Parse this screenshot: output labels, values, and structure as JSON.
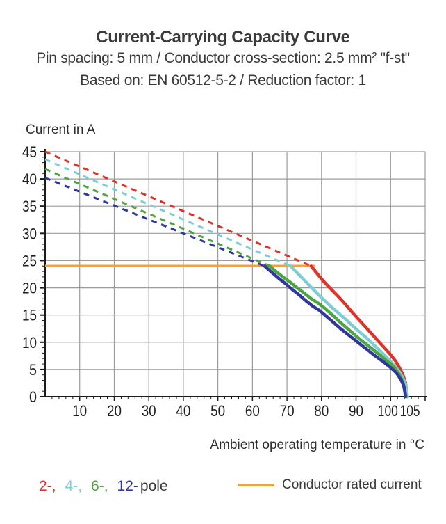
{
  "header": {
    "title": "Current-Carrying Capacity Curve",
    "subtitle1": "Pin spacing: 5 mm / Conductor cross-section: 2.5 mm² \"f-st\"",
    "subtitle2": "Based on: EN 60512-5-2 / Reduction factor: 1"
  },
  "chart_data": {
    "type": "line",
    "title": "Current-Carrying Capacity Curve",
    "ylabel": "Current in A",
    "xlabel": "Ambient operating temperature in °C",
    "xlim": [
      0,
      110
    ],
    "ylim": [
      0,
      45
    ],
    "x_grid_step": 10,
    "y_grid_step": 5,
    "x_minor_step": 2,
    "y_minor_step": 1,
    "grid_on": true,
    "grid_color": "#9c9c9c",
    "axis_color": "#1b1b1b",
    "tick_label_color": "#1f1f1f",
    "x_tick_labels": [
      {
        "v": 10,
        "label": "10"
      },
      {
        "v": 20,
        "label": "20"
      },
      {
        "v": 30,
        "label": "30"
      },
      {
        "v": 40,
        "label": "40"
      },
      {
        "v": 50,
        "label": "50"
      },
      {
        "v": 60,
        "label": "60"
      },
      {
        "v": 70,
        "label": "70"
      },
      {
        "v": 80,
        "label": "80"
      },
      {
        "v": 90,
        "label": "90"
      },
      {
        "v": 100,
        "label": "100"
      },
      {
        "v": 105,
        "label": "105"
      }
    ],
    "y_tick_labels": [
      {
        "v": 0,
        "label": "0"
      },
      {
        "v": 5,
        "label": "5"
      },
      {
        "v": 10,
        "label": "10"
      },
      {
        "v": 15,
        "label": "15"
      },
      {
        "v": 20,
        "label": "20"
      },
      {
        "v": 25,
        "label": "25"
      },
      {
        "v": 30,
        "label": "30"
      },
      {
        "v": 35,
        "label": "35"
      },
      {
        "v": 40,
        "label": "40"
      },
      {
        "v": 45,
        "label": "45"
      }
    ],
    "rated_current_line": {
      "value": 24,
      "x_from": 0,
      "x_to": 78,
      "color": "#f2a13c",
      "label": "Conductor rated current"
    },
    "series": [
      {
        "name": "2-pole",
        "color": "#e23127",
        "dashed": [
          [
            0,
            45
          ],
          [
            77,
            24
          ]
        ],
        "solid": [
          [
            77,
            24
          ],
          [
            79,
            22.4
          ],
          [
            81,
            20.9
          ],
          [
            83,
            19.6
          ],
          [
            85,
            18.3
          ],
          [
            87,
            16.9
          ],
          [
            89,
            15.4
          ],
          [
            91,
            14
          ],
          [
            93,
            12.6
          ],
          [
            95,
            11.2
          ],
          [
            97,
            9.8
          ],
          [
            99,
            8.4
          ],
          [
            100,
            7.7
          ],
          [
            101.5,
            6.5
          ],
          [
            102.5,
            5.4
          ],
          [
            103.5,
            4.1
          ],
          [
            104.3,
            2.6
          ],
          [
            104.85,
            0
          ]
        ]
      },
      {
        "name": "4-pole",
        "color": "#7dcdd6",
        "dashed": [
          [
            0,
            43.6
          ],
          [
            71,
            24
          ]
        ],
        "solid": [
          [
            71,
            24
          ],
          [
            73,
            22.7
          ],
          [
            75,
            21.4
          ],
          [
            77,
            20.1
          ],
          [
            79,
            18.8
          ],
          [
            81,
            17.6
          ],
          [
            83,
            16.4
          ],
          [
            85,
            15.3
          ],
          [
            87,
            14.2
          ],
          [
            89,
            13
          ],
          [
            91,
            11.9
          ],
          [
            93,
            10.8
          ],
          [
            95,
            9.6
          ],
          [
            97,
            8.4
          ],
          [
            99,
            7.1
          ],
          [
            100,
            6.5
          ],
          [
            101.5,
            5.4
          ],
          [
            102.5,
            4.6
          ],
          [
            103.5,
            3.5
          ],
          [
            104.3,
            2.3
          ],
          [
            104.9,
            0
          ]
        ]
      },
      {
        "name": "6-pole",
        "color": "#4da63f",
        "dashed": [
          [
            0,
            41.8
          ],
          [
            65,
            24
          ]
        ],
        "solid": [
          [
            65,
            24
          ],
          [
            67,
            22.9
          ],
          [
            69,
            21.9
          ],
          [
            71,
            21
          ],
          [
            73,
            20
          ],
          [
            75,
            19
          ],
          [
            77,
            18
          ],
          [
            79,
            17.2
          ],
          [
            81,
            16.2
          ],
          [
            83,
            15.1
          ],
          [
            85,
            13.9
          ],
          [
            87,
            12.8
          ],
          [
            89,
            11.7
          ],
          [
            91,
            10.6
          ],
          [
            93,
            9.6
          ],
          [
            95,
            8.6
          ],
          [
            97,
            7.6
          ],
          [
            99,
            6.5
          ],
          [
            100,
            6.1
          ],
          [
            101.5,
            5
          ],
          [
            102.5,
            4.1
          ],
          [
            103.5,
            2.9
          ],
          [
            104.5,
            0
          ]
        ]
      },
      {
        "name": "12-pole",
        "color": "#3137a1",
        "dashed": [
          [
            0,
            40.2
          ],
          [
            63.5,
            24
          ]
        ],
        "solid": [
          [
            63.5,
            24
          ],
          [
            65.5,
            22.9
          ],
          [
            67.5,
            21.8
          ],
          [
            69.5,
            20.8
          ],
          [
            71.5,
            19.7
          ],
          [
            73.5,
            18.7
          ],
          [
            75.5,
            17.6
          ],
          [
            77.5,
            16.6
          ],
          [
            79.5,
            15.8
          ],
          [
            81.5,
            14.7
          ],
          [
            83.5,
            13.6
          ],
          [
            85.5,
            12.5
          ],
          [
            87.5,
            11.5
          ],
          [
            89.5,
            10.5
          ],
          [
            91.5,
            9.5
          ],
          [
            93.5,
            8.5
          ],
          [
            95.5,
            7.5
          ],
          [
            97.5,
            6.6
          ],
          [
            99.5,
            5.6
          ],
          [
            101,
            4.8
          ],
          [
            102,
            4.1
          ],
          [
            103,
            3.1
          ],
          [
            103.8,
            2
          ],
          [
            104.35,
            0
          ]
        ]
      }
    ],
    "legend_position": "bottom"
  },
  "legend": {
    "pole_items": [
      {
        "label": "2-,",
        "color": "#e23127"
      },
      {
        "label": "4-,",
        "color": "#7dcdd6"
      },
      {
        "label": "6-,",
        "color": "#4da63f"
      },
      {
        "label": "12-",
        "color": "#3137a1"
      }
    ],
    "pole_suffix": "pole",
    "rated": {
      "label": "Conductor rated current",
      "color": "#f2a13c"
    }
  }
}
